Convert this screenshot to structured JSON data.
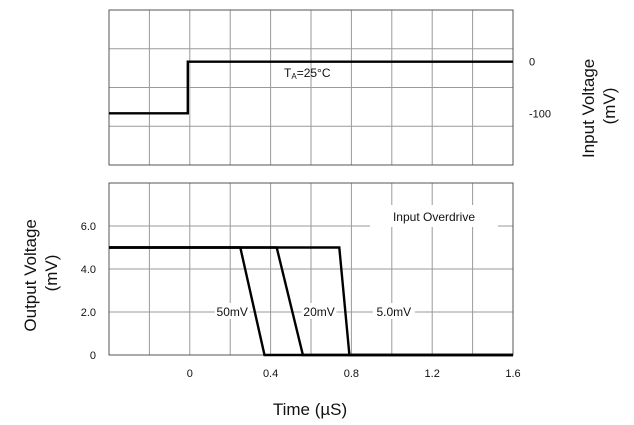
{
  "chart_data": [
    {
      "type": "line",
      "panel": "input",
      "ylabel": "Input Voltage (mV)",
      "ylabel_lines": [
        "Input Voltage",
        "(mV)"
      ],
      "xlim": [
        -0.4,
        1.6
      ],
      "ylim": [
        -200,
        100
      ],
      "yticks": [
        {
          "value": 0,
          "label": "0"
        },
        {
          "value": -100,
          "label": "-100"
        }
      ],
      "annotation": {
        "main": "T",
        "sub": "A",
        "rest": "=25°C"
      },
      "series": [
        {
          "x": [
            -0.4,
            -0.01,
            -0.01,
            1.6
          ],
          "y": [
            -100,
            -100,
            0,
            0
          ]
        }
      ],
      "grid": true
    },
    {
      "type": "line",
      "panel": "output",
      "xlabel": "Time (µS)",
      "ylabel": "Output Voltage (mV)",
      "ylabel_lines": [
        "Output Voltage",
        "(mV)"
      ],
      "xlim": [
        -0.4,
        1.6
      ],
      "ylim": [
        0,
        8
      ],
      "xticks": [
        {
          "value": 0,
          "label": "0"
        },
        {
          "value": 0.4,
          "label": "0.4"
        },
        {
          "value": 0.8,
          "label": "0.8"
        },
        {
          "value": 1.2,
          "label": "1.2"
        },
        {
          "value": 1.6,
          "label": "1.6"
        }
      ],
      "yticks": [
        {
          "value": 0,
          "label": "0"
        },
        {
          "value": 2,
          "label": "2.0"
        },
        {
          "value": 4,
          "label": "4.0"
        },
        {
          "value": 6,
          "label": "6.0"
        }
      ],
      "legend_title": "Input Overdrive",
      "series": [
        {
          "name": "50mV",
          "x": [
            -0.4,
            0.25,
            0.37,
            1.6
          ],
          "y": [
            5,
            5,
            0,
            0
          ],
          "label_at": [
            0.21,
            2.0
          ]
        },
        {
          "name": "20mV",
          "x": [
            -0.4,
            0.43,
            0.56,
            1.6
          ],
          "y": [
            5,
            5,
            0,
            0
          ],
          "label_at": [
            0.64,
            2.0
          ]
        },
        {
          "name": "5.0mV",
          "x": [
            -0.4,
            0.74,
            0.79,
            1.6
          ],
          "y": [
            5,
            5,
            0,
            0
          ],
          "label_at": [
            1.01,
            2.0
          ]
        }
      ],
      "grid": true
    }
  ]
}
